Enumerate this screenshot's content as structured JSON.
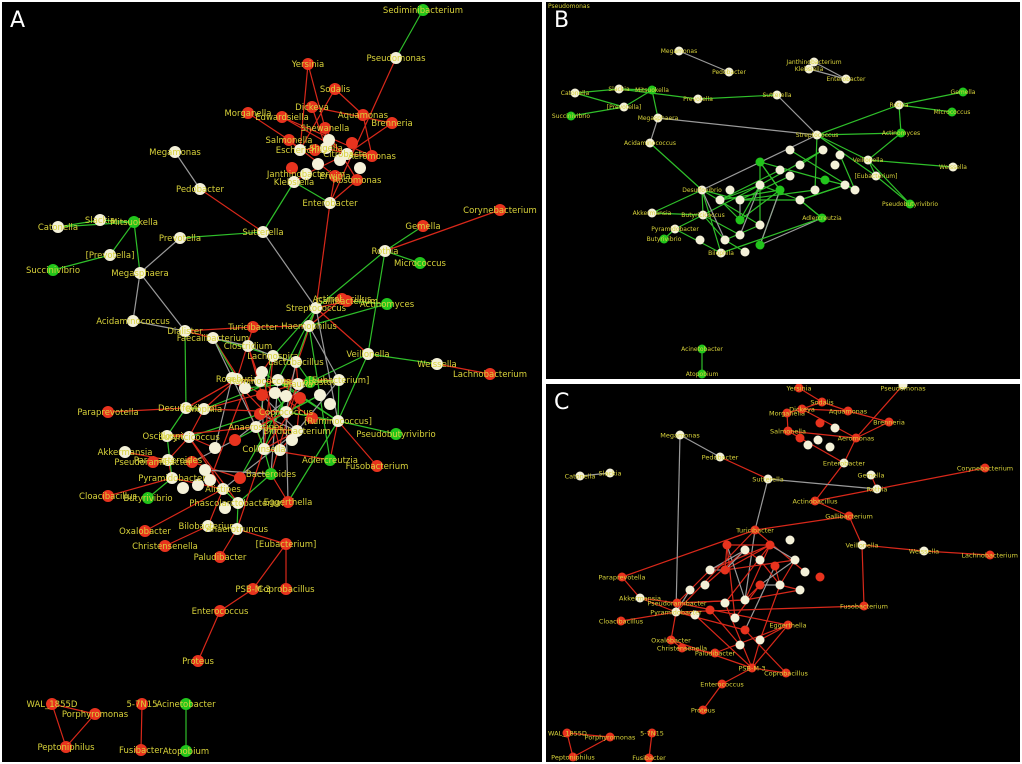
{
  "colors": {
    "background": "#000000",
    "node_red": "#e8331e",
    "node_green": "#22c51c",
    "node_white": "#f4f1d8",
    "edge_red": "#d8281a",
    "edge_green": "#2fbf2a",
    "edge_gray": "#9a9a9a",
    "label": "#d8d23a"
  },
  "panels": [
    {
      "id": "A",
      "letter": "A",
      "nodes": [
        {
          "label": "Sediminibacterium",
          "color": "green"
        },
        {
          "label": "Pseudomonas",
          "color": "white"
        },
        {
          "label": "Yersinia",
          "color": "red"
        },
        {
          "label": "Sodalis",
          "color": "red"
        },
        {
          "label": "Dickeya",
          "color": "red"
        },
        {
          "label": "Morganella",
          "color": "red"
        },
        {
          "label": "Edwardsiella",
          "color": "red"
        },
        {
          "label": "Aquamonas",
          "color": "red"
        },
        {
          "label": "Brenneria",
          "color": "red"
        },
        {
          "label": "Shewanella",
          "color": "red"
        },
        {
          "label": "Salmonella",
          "color": "red"
        },
        {
          "label": "Escherichia",
          "color": "white"
        },
        {
          "label": "Shigella",
          "color": "white"
        },
        {
          "label": "Citrobacter",
          "color": "white"
        },
        {
          "label": "Aeromonas",
          "color": "red"
        },
        {
          "label": "Janthinobacterium",
          "color": "white"
        },
        {
          "label": "Klebsiella",
          "color": "white"
        },
        {
          "label": "Erwinia",
          "color": "red"
        },
        {
          "label": "Rosomonas",
          "color": "red"
        },
        {
          "label": "Enterobacter",
          "color": "white"
        },
        {
          "label": "Megamonas",
          "color": "white"
        },
        {
          "label": "Pedobacter",
          "color": "white"
        },
        {
          "label": "Corynebacterium",
          "color": "red"
        },
        {
          "label": "Sutterella",
          "color": "white"
        },
        {
          "label": "Catonella",
          "color": "white"
        },
        {
          "label": "Slackia",
          "color": "white"
        },
        {
          "label": "Mitsuokella",
          "color": "green"
        },
        {
          "label": "[Prevotella]",
          "color": "white"
        },
        {
          "label": "Prevotella",
          "color": "white"
        },
        {
          "label": "Succinivibrio",
          "color": "green"
        },
        {
          "label": "Megasphaera",
          "color": "white"
        },
        {
          "label": "Gemella",
          "color": "red"
        },
        {
          "label": "Rothia",
          "color": "white"
        },
        {
          "label": "Micrococcus",
          "color": "green"
        },
        {
          "label": "Actinobacillus",
          "color": "red"
        },
        {
          "label": "Acidaminococcus",
          "color": "white"
        },
        {
          "label": "Streptococcus",
          "color": "white"
        },
        {
          "label": "Gallibacterium",
          "color": "red"
        },
        {
          "label": "Actinomyces",
          "color": "green"
        },
        {
          "label": "Haemophilus",
          "color": "white"
        },
        {
          "label": "Turicibacter",
          "color": "red"
        },
        {
          "label": "Dialister",
          "color": "white"
        },
        {
          "label": "Faecalibacterium",
          "color": "white"
        },
        {
          "label": "Clostridium",
          "color": "white"
        },
        {
          "label": "Lachnospira",
          "color": "white"
        },
        {
          "label": "Veillonella",
          "color": "white"
        },
        {
          "label": "Weissella",
          "color": "white"
        },
        {
          "label": "Lachnobacterium",
          "color": "red"
        },
        {
          "label": "Lactobacillus",
          "color": "white"
        },
        {
          "label": "Leuconostoc",
          "color": "green"
        },
        {
          "label": "[Eubacterium]",
          "color": "white"
        },
        {
          "label": "Roseburia",
          "color": "white"
        },
        {
          "label": "Ruminococcus",
          "color": "white"
        },
        {
          "label": "Blautia",
          "color": "white"
        },
        {
          "label": "Paraprevotella",
          "color": "red"
        },
        {
          "label": "Desulfovibrio",
          "color": "white"
        },
        {
          "label": "Bilophila",
          "color": "white"
        },
        {
          "label": "Coprococcus",
          "color": "white"
        },
        {
          "label": "[Ruminococcus]",
          "color": "white"
        },
        {
          "label": "Anaerostipes",
          "color": "white"
        },
        {
          "label": "Bifidobacterium",
          "color": "white"
        },
        {
          "label": "Pseudobutyrivibrio",
          "color": "green"
        },
        {
          "label": "Oscillospira",
          "color": "white"
        },
        {
          "label": "Butyricicoccus",
          "color": "white"
        },
        {
          "label": "Collinsella",
          "color": "white"
        },
        {
          "label": "Akkermansia",
          "color": "white"
        },
        {
          "label": "Parabacteroides",
          "color": "white"
        },
        {
          "label": "Pseudoramibacter",
          "color": "red"
        },
        {
          "label": "Adlercreutzia",
          "color": "green"
        },
        {
          "label": "Fusobacterium",
          "color": "red"
        },
        {
          "label": "Pyramidobacter",
          "color": "white"
        },
        {
          "label": "Bacteroides",
          "color": "green"
        },
        {
          "label": "Cloacibacillus",
          "color": "red"
        },
        {
          "label": "Butyrivibrio",
          "color": "green"
        },
        {
          "label": "Alistipes",
          "color": "white"
        },
        {
          "label": "Phascolarctobacterium",
          "color": "white"
        },
        {
          "label": "Eggerthella",
          "color": "red"
        },
        {
          "label": "Oxalobacter",
          "color": "red"
        },
        {
          "label": "Bilobacterium",
          "color": "white"
        },
        {
          "label": "Christensenella",
          "color": "red"
        },
        {
          "label": "Anaerotruncus",
          "color": "white"
        },
        {
          "label": "[Eubacterium]",
          "color": "red"
        },
        {
          "label": "Paludibacter",
          "color": "red"
        },
        {
          "label": "PSB-M-3",
          "color": "red"
        },
        {
          "label": "Coprobacillus",
          "color": "red"
        },
        {
          "label": "Enterococcus",
          "color": "red"
        },
        {
          "label": "Proteus",
          "color": "red"
        },
        {
          "label": "WAL_1855D",
          "color": "red"
        },
        {
          "label": "Porphyromonas",
          "color": "red"
        },
        {
          "label": "Peptoniphilus",
          "color": "red"
        },
        {
          "label": "5-7N15",
          "color": "red"
        },
        {
          "label": "Fusibacter",
          "color": "red"
        },
        {
          "label": "Acinetobacter",
          "color": "green"
        },
        {
          "label": "Atopobium",
          "color": "green"
        }
      ]
    },
    {
      "id": "B",
      "letter": "B",
      "nodes": [
        {
          "label": "Pseudomonas",
          "color": "white"
        },
        {
          "label": "Megamonas",
          "color": "white"
        },
        {
          "label": "Pedobacter",
          "color": "white"
        },
        {
          "label": "Catonella",
          "color": "white"
        },
        {
          "label": "Slackia",
          "color": "white"
        },
        {
          "label": "Mitsuokella",
          "color": "green"
        },
        {
          "label": "[Prevotella]",
          "color": "white"
        },
        {
          "label": "Prevotella",
          "color": "white"
        },
        {
          "label": "Succinivibrio",
          "color": "green"
        },
        {
          "label": "Megasphaera",
          "color": "white"
        },
        {
          "label": "Sutterella",
          "color": "white"
        },
        {
          "label": "Gemella",
          "color": "green"
        },
        {
          "label": "Rothia",
          "color": "white"
        },
        {
          "label": "Micrococcus",
          "color": "green"
        },
        {
          "label": "Acidaminococcus",
          "color": "white"
        },
        {
          "label": "Streptococcus",
          "color": "white"
        },
        {
          "label": "Actinomyces",
          "color": "green"
        },
        {
          "label": "Weissella",
          "color": "white"
        },
        {
          "label": "Veillonella",
          "color": "white"
        },
        {
          "label": "[Eubacterium]",
          "color": "white"
        },
        {
          "label": "Desulfovibrio",
          "color": "white"
        },
        {
          "label": "Pseudobutyrivibrio",
          "color": "green"
        },
        {
          "label": "Akkermansia",
          "color": "white"
        },
        {
          "label": "Butyricicoccus",
          "color": "white"
        },
        {
          "label": "Pyramidobacter",
          "color": "white"
        },
        {
          "label": "Butyrivibrio",
          "color": "green"
        },
        {
          "label": "Bilophila",
          "color": "white"
        },
        {
          "label": "Adlercreutzia",
          "color": "green"
        },
        {
          "label": "Klebsiella",
          "color": "white"
        },
        {
          "label": "Janthinobacterium",
          "color": "white"
        },
        {
          "label": "Enterobacter",
          "color": "white"
        },
        {
          "label": "Acinetobacter",
          "color": "green"
        },
        {
          "label": "Atopobium",
          "color": "green"
        }
      ]
    },
    {
      "id": "C",
      "letter": "C",
      "nodes": [
        {
          "label": "Yersinia",
          "color": "red"
        },
        {
          "label": "Pseudomonas",
          "color": "white"
        },
        {
          "label": "Sodalis",
          "color": "red"
        },
        {
          "label": "Morganella",
          "color": "red"
        },
        {
          "label": "Dickeya",
          "color": "red"
        },
        {
          "label": "Aquamonas",
          "color": "red"
        },
        {
          "label": "Brenneria",
          "color": "red"
        },
        {
          "label": "Salmonella",
          "color": "red"
        },
        {
          "label": "Aeromonas",
          "color": "red"
        },
        {
          "label": "Enterobacter",
          "color": "white"
        },
        {
          "label": "Megamonas",
          "color": "white"
        },
        {
          "label": "Pedobacter",
          "color": "white"
        },
        {
          "label": "Catonella",
          "color": "white"
        },
        {
          "label": "Slackia",
          "color": "white"
        },
        {
          "label": "Gemella",
          "color": "white"
        },
        {
          "label": "Corynebacterium",
          "color": "red"
        },
        {
          "label": "Sutterella",
          "color": "white"
        },
        {
          "label": "Rothia",
          "color": "white"
        },
        {
          "label": "Weissella",
          "color": "white"
        },
        {
          "label": "Lachnobacterium",
          "color": "red"
        },
        {
          "label": "Actinobacillus",
          "color": "red"
        },
        {
          "label": "Gallibacterium",
          "color": "red"
        },
        {
          "label": "Turicibacter",
          "color": "red"
        },
        {
          "label": "Veillonella",
          "color": "white"
        },
        {
          "label": "Paraprevotella",
          "color": "red"
        },
        {
          "label": "Akkermansia",
          "color": "white"
        },
        {
          "label": "Pseudoramibacter",
          "color": "red"
        },
        {
          "label": "Pyramidobacter",
          "color": "white"
        },
        {
          "label": "Cloacibacillus",
          "color": "red"
        },
        {
          "label": "Fusobacterium",
          "color": "red"
        },
        {
          "label": "Oxalobacter",
          "color": "red"
        },
        {
          "label": "Christensenella",
          "color": "red"
        },
        {
          "label": "Paludibacter",
          "color": "red"
        },
        {
          "label": "Eggerthella",
          "color": "red"
        },
        {
          "label": "PSB-M-3",
          "color": "red"
        },
        {
          "label": "Coprobacillus",
          "color": "red"
        },
        {
          "label": "Enterococcus",
          "color": "red"
        },
        {
          "label": "Proteus",
          "color": "red"
        },
        {
          "label": "WAL_1855D",
          "color": "red"
        },
        {
          "label": "Porphyromonas",
          "color": "red"
        },
        {
          "label": "5-7N15",
          "color": "red"
        },
        {
          "label": "Peptoniphilus",
          "color": "red"
        },
        {
          "label": "Fusibacter",
          "color": "red"
        }
      ]
    }
  ]
}
